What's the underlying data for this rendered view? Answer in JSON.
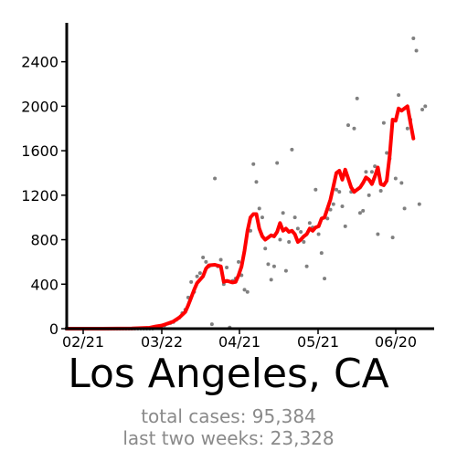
{
  "chart_data": {
    "type": "line",
    "title": "Los Angeles, CA",
    "x_tick_labels": [
      "02/21",
      "03/22",
      "04/21",
      "05/21",
      "06/20"
    ],
    "y_ticks": [
      0,
      400,
      800,
      1200,
      1600,
      2000,
      2400
    ],
    "ylim": [
      0,
      2750
    ],
    "grid": false,
    "series": [
      {
        "kind": "daily new cases (points)",
        "points": [
          [
            28,
            0
          ],
          [
            29,
            0
          ],
          [
            30,
            0
          ],
          [
            31,
            0
          ],
          [
            32,
            0
          ],
          [
            33,
            0
          ],
          [
            34,
            0
          ],
          [
            35,
            0
          ],
          [
            36,
            0
          ],
          [
            37,
            0
          ],
          [
            38,
            0
          ],
          [
            39,
            0
          ],
          [
            40,
            0
          ],
          [
            41,
            0
          ],
          [
            42,
            0
          ],
          [
            43,
            0
          ],
          [
            44,
            0
          ],
          [
            45,
            0
          ],
          [
            46,
            0
          ],
          [
            47,
            0
          ],
          [
            48,
            0
          ],
          [
            49,
            0
          ],
          [
            50,
            0
          ],
          [
            51,
            0
          ],
          [
            52,
            0
          ],
          [
            53,
            0
          ],
          [
            54,
            0
          ],
          [
            55,
            0
          ],
          [
            56,
            0
          ],
          [
            57,
            0
          ],
          [
            58,
            10
          ],
          [
            59,
            20
          ],
          [
            60,
            25
          ],
          [
            61,
            30
          ],
          [
            62,
            45
          ],
          [
            63,
            50
          ],
          [
            64,
            60
          ],
          [
            65,
            80
          ],
          [
            66,
            100
          ],
          [
            67,
            140
          ],
          [
            68,
            170
          ],
          [
            69,
            280
          ],
          [
            70,
            420
          ],
          [
            71,
            330
          ],
          [
            72,
            470
          ],
          [
            73,
            500
          ],
          [
            74,
            640
          ],
          [
            75,
            600
          ],
          [
            76,
            560
          ],
          [
            77,
            40
          ],
          [
            78,
            1350
          ],
          [
            79,
            560
          ],
          [
            80,
            620
          ],
          [
            81,
            400
          ],
          [
            82,
            550
          ],
          [
            83,
            10
          ],
          [
            84,
            430
          ],
          [
            85,
            450
          ],
          [
            86,
            600
          ],
          [
            87,
            480
          ],
          [
            88,
            350
          ],
          [
            89,
            330
          ],
          [
            90,
            880
          ],
          [
            91,
            1480
          ],
          [
            92,
            1320
          ],
          [
            93,
            1080
          ],
          [
            94,
            1000
          ],
          [
            95,
            720
          ],
          [
            96,
            580
          ],
          [
            97,
            440
          ],
          [
            98,
            560
          ],
          [
            99,
            1490
          ],
          [
            100,
            800
          ],
          [
            101,
            1040
          ],
          [
            102,
            520
          ],
          [
            103,
            780
          ],
          [
            104,
            1610
          ],
          [
            105,
            1000
          ],
          [
            106,
            900
          ],
          [
            107,
            870
          ],
          [
            108,
            780
          ],
          [
            109,
            560
          ],
          [
            110,
            950
          ],
          [
            111,
            910
          ],
          [
            112,
            1250
          ],
          [
            113,
            850
          ],
          [
            114,
            680
          ],
          [
            115,
            450
          ],
          [
            116,
            990
          ],
          [
            117,
            1070
          ],
          [
            118,
            1120
          ],
          [
            119,
            1250
          ],
          [
            120,
            1230
          ],
          [
            121,
            1100
          ],
          [
            122,
            920
          ],
          [
            123,
            1830
          ],
          [
            124,
            1230
          ],
          [
            125,
            1800
          ],
          [
            126,
            2070
          ],
          [
            127,
            1040
          ],
          [
            128,
            1060
          ],
          [
            129,
            1410
          ],
          [
            130,
            1200
          ],
          [
            131,
            1410
          ],
          [
            132,
            1460
          ],
          [
            133,
            850
          ],
          [
            134,
            1240
          ],
          [
            135,
            1850
          ],
          [
            136,
            1580
          ],
          [
            137,
            1530
          ],
          [
            138,
            820
          ],
          [
            139,
            1350
          ],
          [
            140,
            2100
          ],
          [
            141,
            1310
          ],
          [
            142,
            1080
          ],
          [
            143,
            1800
          ],
          [
            144,
            1880
          ],
          [
            145,
            2610
          ],
          [
            146,
            2500
          ],
          [
            147,
            1120
          ],
          [
            148,
            1970
          ],
          [
            149,
            2000
          ]
        ]
      },
      {
        "kind": "7-day rolling average (line)",
        "points": [
          [
            28,
            0
          ],
          [
            40,
            0
          ],
          [
            50,
            2
          ],
          [
            56,
            8
          ],
          [
            58,
            20
          ],
          [
            60,
            28
          ],
          [
            62,
            45
          ],
          [
            64,
            65
          ],
          [
            66,
            100
          ],
          [
            68,
            150
          ],
          [
            69,
            210
          ],
          [
            70,
            280
          ],
          [
            71,
            350
          ],
          [
            72,
            410
          ],
          [
            74,
            470
          ],
          [
            75,
            540
          ],
          [
            76,
            570
          ],
          [
            78,
            575
          ],
          [
            80,
            560
          ],
          [
            81,
            420
          ],
          [
            82,
            430
          ],
          [
            84,
            415
          ],
          [
            85,
            420
          ],
          [
            86,
            480
          ],
          [
            87,
            560
          ],
          [
            88,
            700
          ],
          [
            89,
            880
          ],
          [
            90,
            1000
          ],
          [
            91,
            1030
          ],
          [
            92,
            1030
          ],
          [
            93,
            900
          ],
          [
            94,
            830
          ],
          [
            95,
            800
          ],
          [
            96,
            820
          ],
          [
            97,
            840
          ],
          [
            98,
            830
          ],
          [
            99,
            870
          ],
          [
            100,
            950
          ],
          [
            101,
            880
          ],
          [
            102,
            900
          ],
          [
            103,
            870
          ],
          [
            104,
            880
          ],
          [
            105,
            850
          ],
          [
            106,
            780
          ],
          [
            107,
            800
          ],
          [
            108,
            830
          ],
          [
            109,
            850
          ],
          [
            110,
            900
          ],
          [
            111,
            880
          ],
          [
            112,
            910
          ],
          [
            113,
            920
          ],
          [
            114,
            990
          ],
          [
            115,
            1000
          ],
          [
            116,
            1080
          ],
          [
            117,
            1160
          ],
          [
            118,
            1280
          ],
          [
            119,
            1400
          ],
          [
            120,
            1420
          ],
          [
            121,
            1340
          ],
          [
            122,
            1430
          ],
          [
            123,
            1350
          ],
          [
            124,
            1270
          ],
          [
            125,
            1230
          ],
          [
            126,
            1250
          ],
          [
            127,
            1270
          ],
          [
            128,
            1310
          ],
          [
            129,
            1360
          ],
          [
            130,
            1340
          ],
          [
            131,
            1300
          ],
          [
            132,
            1370
          ],
          [
            133,
            1450
          ],
          [
            134,
            1300
          ],
          [
            135,
            1290
          ],
          [
            136,
            1330
          ],
          [
            137,
            1560
          ],
          [
            138,
            1880
          ],
          [
            139,
            1870
          ],
          [
            140,
            1980
          ],
          [
            141,
            1960
          ],
          [
            142,
            1980
          ],
          [
            143,
            2000
          ],
          [
            144,
            1850
          ],
          [
            145,
            1710
          ]
        ]
      }
    ]
  },
  "summary": {
    "total_label": "total cases: 95,384",
    "recent_label": "last two weeks: 23,328"
  },
  "colors": {
    "line": "#ff0000",
    "points": "#808080",
    "axes": "#000000",
    "summary_text": "#8a8a8a"
  }
}
